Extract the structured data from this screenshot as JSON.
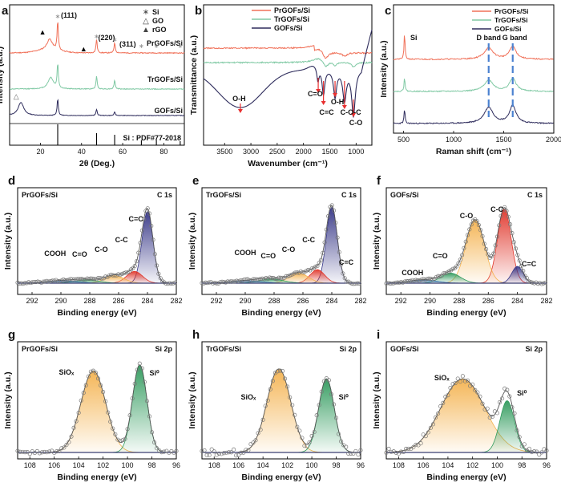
{
  "colors": {
    "pr": "#f07058",
    "tr": "#80c9a4",
    "g": "#2e2c5c",
    "navy_fill": "#353586",
    "red_fill": "#e0352a",
    "orange_fill": "#f4b24e",
    "green_fill": "#2f9a5c",
    "blue_fill": "#2e6aa8",
    "arrow": "#e83030",
    "dash": "#4b82d0",
    "marker": "#8a8a8a"
  },
  "chart_data": [
    {
      "panel": "a",
      "type": "line",
      "xlabel": "2θ (Deg.)",
      "ylabel": "Intensity (a.u.)",
      "xlim": [
        5,
        90
      ],
      "xticks": [
        20,
        40,
        60,
        80
      ],
      "legend": [
        {
          "marker": "∗",
          "label": "Si"
        },
        {
          "marker": "△",
          "label": "GO"
        },
        {
          "marker": "▲",
          "label": "rGO"
        }
      ],
      "series": [
        {
          "name": "PrGOFs/Si",
          "peaks": [
            {
              "x": 24.5,
              "h": 0.35
            },
            {
              "x": 28.4,
              "h": 0.95
            },
            {
              "x": 47.3,
              "h": 0.45
            },
            {
              "x": 56.1,
              "h": 0.35
            }
          ]
        },
        {
          "name": "TrGOFs/Si",
          "peaks": [
            {
              "x": 25.0,
              "h": 0.45
            },
            {
              "x": 28.4,
              "h": 0.95
            },
            {
              "x": 47.3,
              "h": 0.5
            },
            {
              "x": 56.1,
              "h": 0.35
            }
          ]
        },
        {
          "name": "GOFs/Si",
          "peaks": [
            {
              "x": 10.5,
              "h": 0.75
            },
            {
              "x": 28.4,
              "h": 0.95
            },
            {
              "x": 47.3,
              "h": 0.35
            },
            {
              "x": 56.1,
              "h": 0.2
            }
          ]
        }
      ],
      "reference": {
        "label": "Si : PDF#77-2018",
        "lines": [
          28.4,
          47.3,
          56.1,
          69.1,
          76.4,
          88.0
        ]
      },
      "annotations": [
        "(111)",
        "(220)",
        "(311)"
      ]
    },
    {
      "panel": "b",
      "type": "line",
      "xlabel": "Wavenumber (cm⁻¹)",
      "ylabel": "Transmittance (a.u.)",
      "xlim": [
        3900,
        700
      ],
      "xticks": [
        3500,
        3000,
        2500,
        2000,
        1500,
        1000
      ],
      "legend": [
        "PrGOFs/Si",
        "TrGOFs/Si",
        "GOFs/Si"
      ],
      "annotations": [
        "O-H",
        "C=O",
        "C=C",
        "O-H",
        "C-O-C",
        "C-O"
      ]
    },
    {
      "panel": "c",
      "type": "line",
      "xlabel": "Raman shift (cm⁻¹)",
      "ylabel": "Intensity (a.u.)",
      "xlim": [
        400,
        2000
      ],
      "xticks": [
        500,
        1000,
        1500,
        2000
      ],
      "legend": [
        "PrGOFs/Si",
        "TrGOFs/Si",
        "GOFs/Si"
      ],
      "bands": {
        "Si": 510,
        "D band": 1350,
        "G band": 1590
      },
      "annotations": [
        "Si",
        "D band",
        "G band"
      ]
    },
    {
      "panel": "d",
      "type": "area",
      "sample": "PrGOFs/Si",
      "tag": "C 1s",
      "xlabel": "Binding energy (eV)",
      "ylabel": "Intensity (a.u.)",
      "xlim": [
        293,
        282
      ],
      "xticks": [
        292,
        290,
        288,
        286,
        284,
        282
      ],
      "peaks": [
        {
          "name": "C=C",
          "center": 284.0,
          "height": 0.85,
          "fwhm": 0.9
        },
        {
          "name": "C-C",
          "center": 284.9,
          "height": 0.14,
          "fwhm": 1.3
        },
        {
          "name": "C-O",
          "center": 286.3,
          "height": 0.09,
          "fwhm": 1.6
        },
        {
          "name": "C=O",
          "center": 288.2,
          "height": 0.04,
          "fwhm": 2.0
        },
        {
          "name": "COOH",
          "center": 290.0,
          "height": 0.03,
          "fwhm": 2.5
        }
      ]
    },
    {
      "panel": "e",
      "type": "area",
      "sample": "TrGOFs/Si",
      "tag": "C 1s",
      "xlabel": "Binding energy (eV)",
      "ylabel": "Intensity (a.u.)",
      "xlim": [
        293,
        282
      ],
      "xticks": [
        292,
        290,
        288,
        286,
        284,
        282
      ],
      "peaks": [
        {
          "name": "C=C",
          "center": 284.0,
          "height": 0.9,
          "fwhm": 0.9
        },
        {
          "name": "C-C",
          "center": 285.0,
          "height": 0.16,
          "fwhm": 1.2
        },
        {
          "name": "C-O",
          "center": 286.3,
          "height": 0.12,
          "fwhm": 1.6
        },
        {
          "name": "C=O",
          "center": 288.2,
          "height": 0.05,
          "fwhm": 2.0
        },
        {
          "name": "COOH",
          "center": 290.0,
          "height": 0.03,
          "fwhm": 2.5
        }
      ]
    },
    {
      "panel": "f",
      "type": "area",
      "sample": "GOFs/Si",
      "tag": "C 1s",
      "xlabel": "Binding energy (eV)",
      "ylabel": "Intensity (a.u.)",
      "xlim": [
        293,
        282
      ],
      "xticks": [
        292,
        290,
        288,
        286,
        284,
        282
      ],
      "peaks": [
        {
          "name": "C-C",
          "center": 284.9,
          "height": 0.88,
          "fwhm": 1.1
        },
        {
          "name": "C-O",
          "center": 286.9,
          "height": 0.75,
          "fwhm": 1.5
        },
        {
          "name": "C=C",
          "center": 284.0,
          "height": 0.2,
          "fwhm": 0.9
        },
        {
          "name": "C=O",
          "center": 288.6,
          "height": 0.12,
          "fwhm": 1.6
        },
        {
          "name": "COOH",
          "center": 290.5,
          "height": 0.04,
          "fwhm": 2.2
        }
      ]
    },
    {
      "panel": "g",
      "type": "area",
      "sample": "PrGOFs/Si",
      "tag": "Si 2p",
      "xlabel": "Binding energy (eV)",
      "ylabel": "Intensity (a.u.)",
      "xlim": [
        109,
        96
      ],
      "xticks": [
        108,
        106,
        104,
        102,
        100,
        98,
        96
      ],
      "peaks": [
        {
          "name": "SiOₓ",
          "center": 102.8,
          "height": 0.82,
          "fwhm": 2.4
        },
        {
          "name": "Si⁰",
          "center": 99.0,
          "height": 0.88,
          "fwhm": 1.4
        }
      ]
    },
    {
      "panel": "h",
      "type": "area",
      "sample": "TrGOFs/Si",
      "tag": "Si 2p",
      "xlabel": "Binding energy (eV)",
      "ylabel": "Intensity (a.u.)",
      "xlim": [
        109,
        96
      ],
      "xticks": [
        108,
        106,
        104,
        102,
        100,
        98,
        96
      ],
      "peaks": [
        {
          "name": "SiOₓ",
          "center": 102.7,
          "height": 0.84,
          "fwhm": 2.3
        },
        {
          "name": "Si⁰",
          "center": 98.8,
          "height": 0.74,
          "fwhm": 1.5
        }
      ]
    },
    {
      "panel": "i",
      "type": "area",
      "sample": "GOFs/Si",
      "tag": "Si 2p",
      "xlabel": "Binding energy (eV)",
      "ylabel": "Intensity (a.u.)",
      "xlim": [
        109,
        96
      ],
      "xticks": [
        108,
        106,
        104,
        102,
        100,
        98,
        96
      ],
      "peaks": [
        {
          "name": "SiOₓ",
          "center": 102.8,
          "height": 0.74,
          "fwhm": 4.2
        },
        {
          "name": "Si⁰",
          "center": 99.2,
          "height": 0.52,
          "fwhm": 1.4
        }
      ]
    }
  ]
}
